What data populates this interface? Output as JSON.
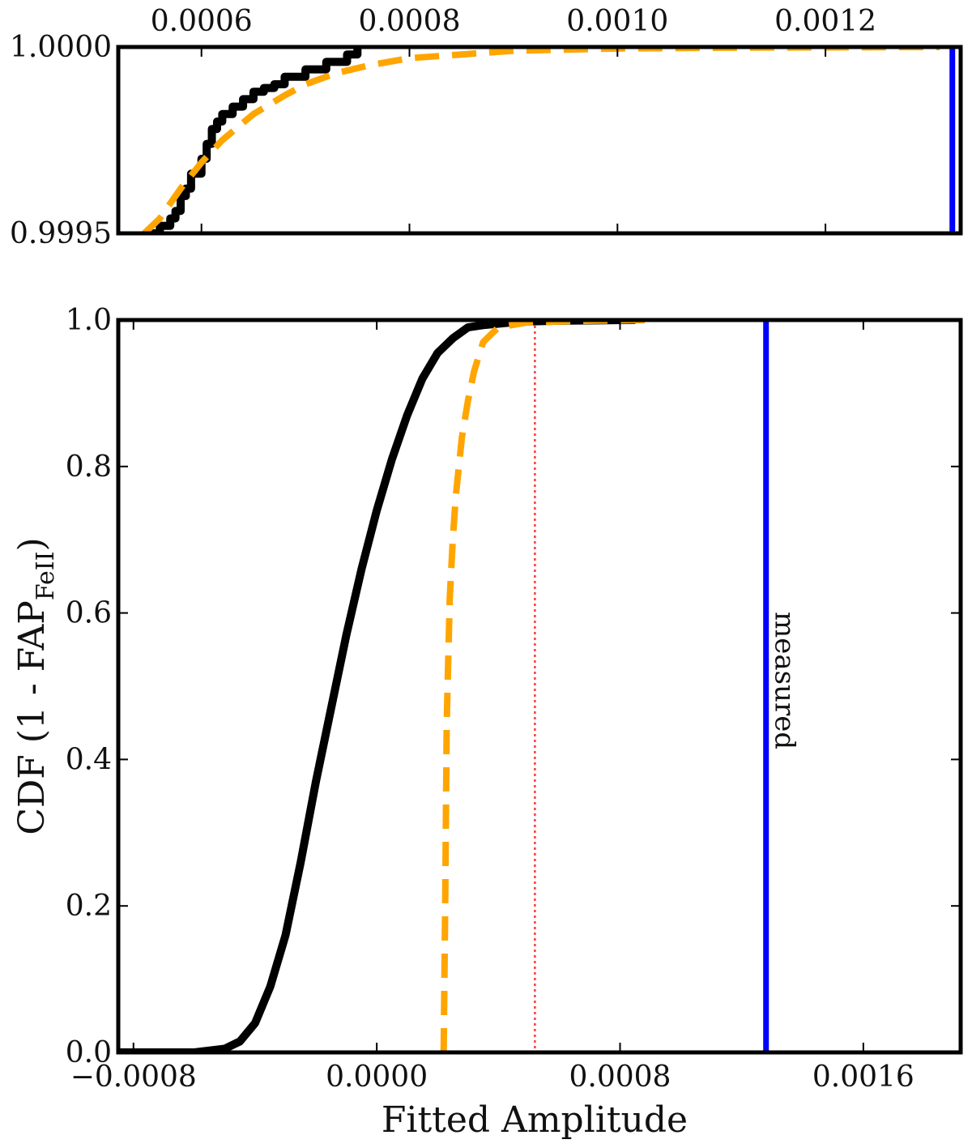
{
  "chart_data": [
    {
      "panel": "inset",
      "type": "line",
      "xlim": [
        0.00052,
        0.00133
      ],
      "ylim": [
        0.9995,
        1.0
      ],
      "xticks_top": [
        "0.0006",
        "0.0008",
        "0.0010",
        "0.0012"
      ],
      "xtick_values": [
        0.0006,
        0.0008,
        0.001,
        0.0012
      ],
      "yticks": [
        "0.9995",
        "1.0000"
      ],
      "ytick_values": [
        0.9995,
        1.0
      ],
      "series": [
        {
          "style": "step-solid",
          "color": "#000000",
          "x": [
            0.00055,
            0.00056,
            0.00057,
            0.000575,
            0.00058,
            0.000585,
            0.00059,
            0.0006,
            0.000605,
            0.00061,
            0.000615,
            0.00062,
            0.00063,
            0.00064,
            0.00065,
            0.00066,
            0.00067,
            0.00068,
            0.0007,
            0.00072,
            0.00074,
            0.00075
          ],
          "y": [
            0.9995,
            0.99952,
            0.99954,
            0.99956,
            0.9996,
            0.99962,
            0.99966,
            0.9997,
            0.99974,
            0.99978,
            0.9998,
            0.99982,
            0.99984,
            0.99986,
            0.99988,
            0.99989,
            0.9999,
            0.99992,
            0.99994,
            0.99996,
            0.99998,
            1.0
          ]
        },
        {
          "style": "dashed",
          "color": "#ffa500",
          "x": [
            0.000545,
            0.00056,
            0.00058,
            0.0006,
            0.00062,
            0.00065,
            0.00068,
            0.0007,
            0.00073,
            0.00076,
            0.0008,
            0.00085,
            0.0009,
            0.001,
            0.0011,
            0.0012,
            0.00131
          ],
          "y": [
            0.9995,
            0.99954,
            0.99962,
            0.99969,
            0.99975,
            0.99982,
            0.99987,
            0.9999,
            0.99993,
            0.99995,
            0.99997,
            0.99998,
            0.99999,
            0.999996,
            0.999998,
            0.999999,
            1.0
          ]
        }
      ],
      "vlines": [
        {
          "x": 0.001322,
          "color": "#0000ff",
          "style": "solid"
        }
      ]
    },
    {
      "panel": "main",
      "type": "line",
      "xlabel": "Fitted Amplitude",
      "ylabel": "CDF (1 - FAP",
      "ylabel_subscript": "FeII",
      "ylabel_suffix": ")",
      "xlim": [
        -0.00085,
        0.00192
      ],
      "ylim": [
        0.0,
        1.0
      ],
      "xticks": [
        "−0.0008",
        "0.0000",
        "0.0008",
        "0.0016"
      ],
      "xtick_values": [
        -0.0008,
        0.0,
        0.0008,
        0.0016
      ],
      "yticks": [
        "0.0",
        "0.2",
        "0.4",
        "0.6",
        "0.8",
        "1.0"
      ],
      "ytick_values": [
        0.0,
        0.2,
        0.4,
        0.6,
        0.8,
        1.0
      ],
      "series": [
        {
          "style": "solid",
          "color": "#000000",
          "x": [
            -0.00085,
            -0.0006,
            -0.0005,
            -0.00045,
            -0.0004,
            -0.00035,
            -0.0003,
            -0.00025,
            -0.0002,
            -0.00015,
            -0.0001,
            -5e-05,
            0.0,
            5e-05,
            0.0001,
            0.00015,
            0.0002,
            0.00025,
            0.0003,
            0.00035,
            0.0004,
            0.00045,
            0.0005,
            0.0006,
            0.0007,
            0.00085
          ],
          "y": [
            0.0,
            0.0,
            0.005,
            0.015,
            0.04,
            0.09,
            0.16,
            0.26,
            0.37,
            0.47,
            0.57,
            0.66,
            0.74,
            0.81,
            0.87,
            0.92,
            0.955,
            0.975,
            0.99,
            0.993,
            0.995,
            0.997,
            0.998,
            0.999,
            0.9995,
            1.0
          ]
        },
        {
          "style": "dashed",
          "color": "#ffa500",
          "x": [
            0.00022,
            0.000225,
            0.00023,
            0.00024,
            0.00025,
            0.00026,
            0.00027,
            0.00028,
            0.0003,
            0.00032,
            0.00035,
            0.0004,
            0.0005,
            0.0007,
            0.0009
          ],
          "y": [
            0.0,
            0.2,
            0.45,
            0.62,
            0.7,
            0.76,
            0.8,
            0.84,
            0.89,
            0.93,
            0.97,
            0.99,
            0.997,
            0.999,
            1.0
          ]
        }
      ],
      "vlines": [
        {
          "x": 0.00052,
          "color": "#ff3b3b",
          "style": "dotted"
        },
        {
          "x": 0.00128,
          "color": "#0000ff",
          "style": "solid",
          "label": "measured"
        }
      ]
    }
  ]
}
